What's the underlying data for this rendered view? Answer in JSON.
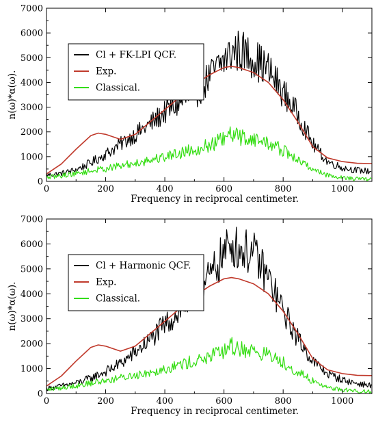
{
  "chart_data": [
    {
      "type": "line",
      "xlabel": "Frequency in reciprocal centimeter.",
      "ylabel": "n(ω)*α(ω).",
      "xlim": [
        0,
        1100
      ],
      "ylim": [
        0,
        7000
      ],
      "xticks": [
        "0",
        "200",
        "400",
        "600",
        "800",
        "1000"
      ],
      "yticks": [
        "0",
        "1000",
        "2000",
        "3000",
        "4000",
        "5000",
        "6000",
        "7000"
      ],
      "grid": false,
      "legend_position": "top-left",
      "series": [
        {
          "name": "Cl + FK-LPI QCF.",
          "color": "#000000",
          "noisy": true,
          "x": [
            0,
            50,
            100,
            150,
            200,
            250,
            300,
            350,
            400,
            450,
            500,
            550,
            600,
            625,
            650,
            700,
            750,
            800,
            850,
            900,
            950,
            1000,
            1050,
            1100
          ],
          "values": [
            250,
            320,
            470,
            750,
            1100,
            1500,
            1900,
            2300,
            2800,
            3150,
            3500,
            4200,
            4900,
            5200,
            5300,
            5000,
            4500,
            3600,
            2700,
            1500,
            800,
            550,
            450,
            400
          ]
        },
        {
          "name": "Exp.",
          "color": "#c0392b",
          "noisy": false,
          "x": [
            0,
            50,
            100,
            150,
            175,
            200,
            250,
            300,
            350,
            400,
            450,
            500,
            550,
            600,
            625,
            650,
            700,
            750,
            800,
            850,
            900,
            950,
            1000,
            1050,
            1100
          ],
          "values": [
            300,
            700,
            1300,
            1850,
            1950,
            1900,
            1700,
            1900,
            2400,
            2900,
            3400,
            3900,
            4300,
            4600,
            4650,
            4600,
            4400,
            4000,
            3300,
            2400,
            1400,
            950,
            800,
            730,
            720
          ]
        },
        {
          "name": "Classical.",
          "color": "#33dd11",
          "noisy": true,
          "x": [
            0,
            50,
            100,
            150,
            200,
            250,
            300,
            350,
            400,
            450,
            500,
            550,
            600,
            625,
            650,
            700,
            750,
            800,
            850,
            900,
            950,
            1000,
            1050,
            1100
          ],
          "values": [
            150,
            230,
            320,
            420,
            520,
            620,
            740,
            860,
            1000,
            1150,
            1300,
            1450,
            1700,
            1900,
            1800,
            1700,
            1550,
            1250,
            850,
            500,
            250,
            150,
            100,
            80
          ]
        }
      ]
    },
    {
      "type": "line",
      "xlabel": "Frequency in reciprocal centimeter.",
      "ylabel": "n(ω)*α(ω).",
      "xlim": [
        0,
        1100
      ],
      "ylim": [
        0,
        7000
      ],
      "xticks": [
        "0",
        "200",
        "400",
        "600",
        "800",
        "1000"
      ],
      "yticks": [
        "0",
        "1000",
        "2000",
        "3000",
        "4000",
        "5000",
        "6000",
        "7000"
      ],
      "grid": false,
      "legend_position": "top-left",
      "series": [
        {
          "name": "Cl + Harmonic QCF.",
          "color": "#000000",
          "noisy": true,
          "x": [
            0,
            50,
            100,
            150,
            200,
            250,
            300,
            350,
            400,
            450,
            500,
            550,
            600,
            625,
            650,
            700,
            750,
            800,
            850,
            900,
            950,
            1000,
            1050,
            1100
          ],
          "values": [
            200,
            300,
            420,
            620,
            880,
            1200,
            1650,
            2150,
            2750,
            3300,
            3900,
            4600,
            5600,
            6000,
            5800,
            5600,
            4600,
            3300,
            2200,
            1300,
            800,
            550,
            400,
            320
          ]
        },
        {
          "name": "Exp.",
          "color": "#c0392b",
          "noisy": false,
          "x": [
            0,
            50,
            100,
            150,
            175,
            200,
            250,
            300,
            350,
            400,
            450,
            500,
            550,
            600,
            625,
            650,
            700,
            750,
            800,
            850,
            900,
            950,
            1000,
            1050,
            1100
          ],
          "values": [
            300,
            700,
            1300,
            1850,
            1950,
            1900,
            1700,
            1900,
            2400,
            2900,
            3400,
            3900,
            4300,
            4600,
            4650,
            4600,
            4400,
            4000,
            3300,
            2400,
            1400,
            950,
            800,
            730,
            720
          ]
        },
        {
          "name": "Classical.",
          "color": "#33dd11",
          "noisy": true,
          "x": [
            0,
            50,
            100,
            150,
            200,
            250,
            300,
            350,
            400,
            450,
            500,
            550,
            600,
            625,
            650,
            700,
            750,
            800,
            850,
            900,
            950,
            1000,
            1050,
            1100
          ],
          "values": [
            150,
            230,
            320,
            420,
            520,
            620,
            740,
            860,
            1000,
            1150,
            1300,
            1450,
            1700,
            1900,
            1800,
            1700,
            1550,
            1250,
            850,
            500,
            250,
            150,
            100,
            80
          ]
        }
      ]
    }
  ]
}
